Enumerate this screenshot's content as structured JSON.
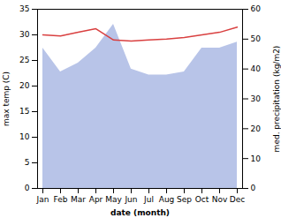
{
  "chart_data": {
    "type": "line",
    "xlabel": "date (month)",
    "ylabel": "max temp (C)",
    "y2label": "med. precipitation (kg/m2)",
    "categories": [
      "Jan",
      "Feb",
      "Mar",
      "Apr",
      "May",
      "Jun",
      "Jul",
      "Aug",
      "Sep",
      "Oct",
      "Nov",
      "Dec"
    ],
    "series": [
      {
        "type": "line",
        "color": "#d94040",
        "values": [
          30.0,
          29.8,
          30.5,
          31.2,
          29.0,
          28.8,
          29.0,
          29.2,
          29.5,
          30.0,
          30.5,
          31.5
        ]
      },
      {
        "type": "area",
        "color": "#b8c4e8",
        "axis": "y2",
        "values": [
          47,
          39,
          42,
          47,
          55,
          40,
          38,
          38,
          39,
          47,
          47,
          49
        ]
      }
    ],
    "ylim": [
      0,
      35
    ],
    "yticks": [
      0,
      5,
      10,
      15,
      20,
      25,
      30,
      35
    ],
    "y2lim": [
      0,
      60
    ],
    "y2ticks": [
      0,
      10,
      20,
      30,
      40,
      50,
      60
    ]
  }
}
